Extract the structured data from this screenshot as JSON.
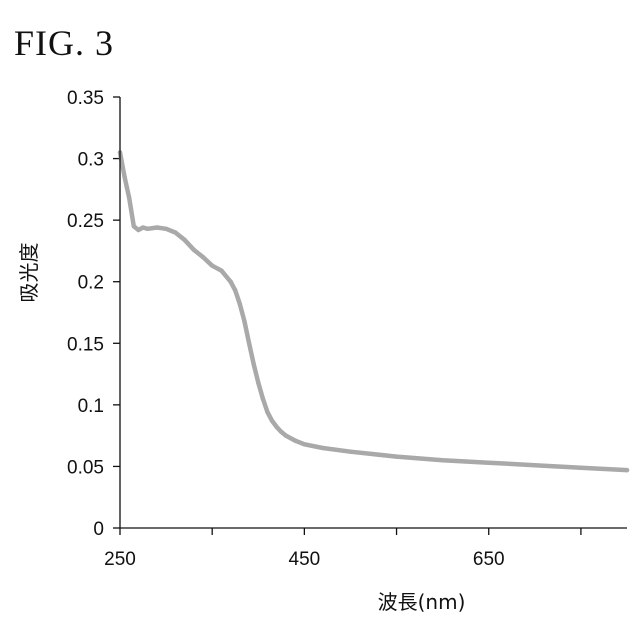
{
  "figure": {
    "label": "FIG. 3"
  },
  "chart_data": {
    "type": "line",
    "title": "",
    "xlabel": "波長(nm)",
    "ylabel": "吸光度",
    "xlim": [
      250,
      800
    ],
    "ylim": [
      0,
      0.35
    ],
    "xticks": [
      250,
      450,
      650
    ],
    "xminor": [
      350,
      550,
      750
    ],
    "yticks": [
      0,
      0.05,
      0.1,
      0.15,
      0.2,
      0.25,
      0.3,
      0.35
    ],
    "ytick_labels": [
      "0",
      "0.05",
      "0.1",
      "0.15",
      "0.2",
      "0.25",
      "0.3",
      "0.35"
    ],
    "grid": false,
    "line_color": "#a9a9a9",
    "series": [
      {
        "x": [
          250,
          255,
          260,
          265,
          270,
          275,
          280,
          290,
          300,
          310,
          320,
          330,
          340,
          350,
          360,
          370,
          375,
          380,
          385,
          390,
          395,
          400,
          405,
          410,
          415,
          420,
          425,
          430,
          440,
          450,
          470,
          500,
          550,
          600,
          650,
          700,
          750,
          800
        ],
        "y": [
          0.305,
          0.285,
          0.268,
          0.245,
          0.242,
          0.244,
          0.243,
          0.244,
          0.243,
          0.24,
          0.234,
          0.226,
          0.22,
          0.213,
          0.209,
          0.2,
          0.193,
          0.182,
          0.168,
          0.15,
          0.133,
          0.118,
          0.105,
          0.094,
          0.087,
          0.082,
          0.078,
          0.075,
          0.071,
          0.068,
          0.065,
          0.062,
          0.058,
          0.055,
          0.053,
          0.051,
          0.049,
          0.047
        ]
      }
    ]
  }
}
